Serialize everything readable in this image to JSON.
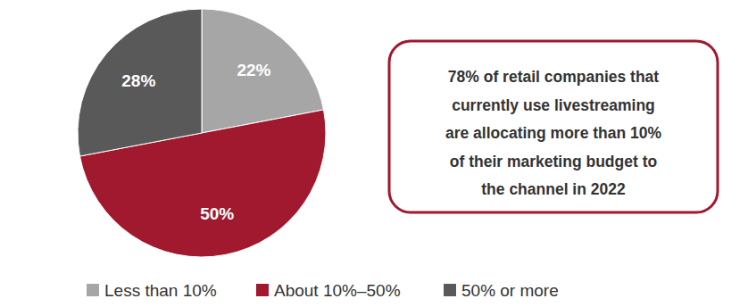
{
  "chart_data": {
    "type": "pie",
    "categories": [
      "Less than 10%",
      "About 10%–50%",
      "50% or more"
    ],
    "values": [
      22,
      50,
      28
    ],
    "value_labels": [
      "22%",
      "50%",
      "28%"
    ],
    "colors": [
      "#a6a6a6",
      "#a0192e",
      "#595959"
    ],
    "data_labels": true,
    "legend": "bottom",
    "annotation": [
      "78% of retail companies that",
      "currently use livestreaming",
      "are allocating more than 10%",
      "of their marketing budget to",
      "the channel in 2022"
    ]
  }
}
